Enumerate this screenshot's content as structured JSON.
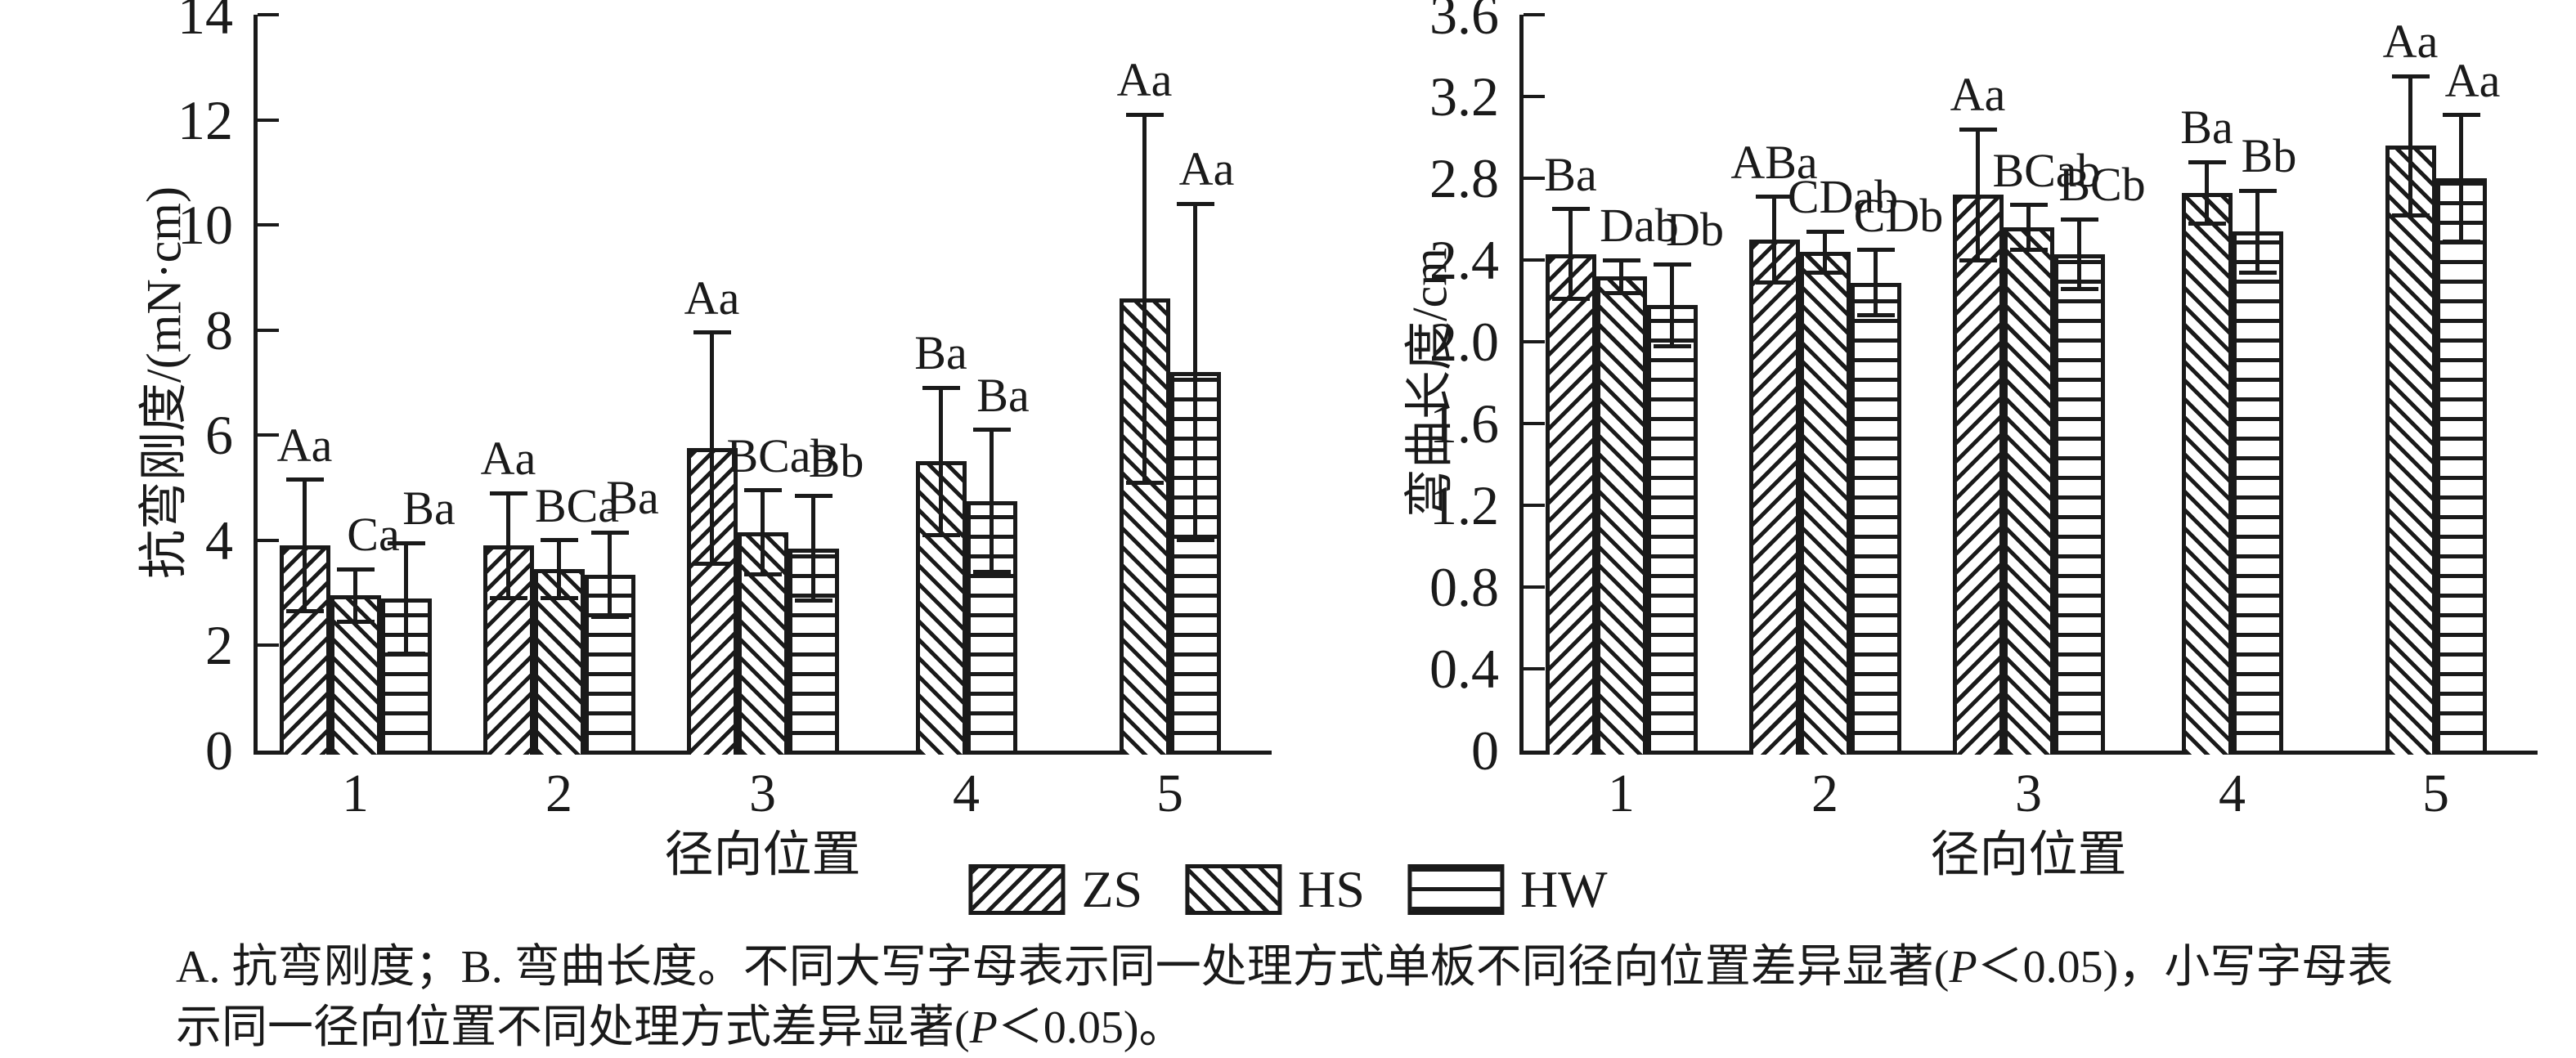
{
  "colors": {
    "foreground": "#1a1a1a",
    "background": "#ffffff"
  },
  "chart_data": [
    {
      "panel": "A",
      "type": "bar",
      "title": "",
      "ylabel": "抗弯刚度/(mN·cm)",
      "xlabel": "径向位置",
      "ylim": [
        0,
        14
      ],
      "grid": false,
      "yticks": [
        {
          "v": 0,
          "label": "0"
        },
        {
          "v": 2,
          "label": "2"
        },
        {
          "v": 4,
          "label": "4"
        },
        {
          "v": 6,
          "label": "6"
        },
        {
          "v": 8,
          "label": "8"
        },
        {
          "v": 10,
          "label": "10"
        },
        {
          "v": 12,
          "label": "12"
        },
        {
          "v": 14,
          "label": "14"
        }
      ],
      "categories": [
        "1",
        "2",
        "3",
        "4",
        "5"
      ],
      "series": [
        {
          "name": "ZS",
          "pattern": "diag-forward",
          "values": [
            3.9,
            3.9,
            5.75,
            null,
            null
          ],
          "errors": [
            1.25,
            1.0,
            2.2,
            null,
            null
          ],
          "point_labels": [
            "Aa",
            "Aa",
            "Aa",
            null,
            null
          ]
        },
        {
          "name": "HS",
          "pattern": "diag-back",
          "values": [
            2.95,
            3.45,
            4.15,
            5.5,
            8.6
          ],
          "errors": [
            0.5,
            0.55,
            0.8,
            1.4,
            3.5
          ],
          "point_labels": [
            "Ca",
            "BCa",
            "BCab",
            "Ba",
            "Aa"
          ]
        },
        {
          "name": "HW",
          "pattern": "horizontal",
          "values": [
            2.9,
            3.35,
            3.85,
            4.75,
            7.2
          ],
          "errors": [
            1.05,
            0.8,
            1.0,
            1.35,
            3.2
          ],
          "point_labels": [
            "Ba",
            "Ba",
            "Bb",
            "Ba",
            "Aa"
          ]
        }
      ]
    },
    {
      "panel": "B",
      "type": "bar",
      "title": "",
      "ylabel": "弯曲长度/cm",
      "xlabel": "径向位置",
      "ylim": [
        0,
        3.6
      ],
      "grid": false,
      "yticks": [
        {
          "v": 0,
          "label": "0"
        },
        {
          "v": 0.4,
          "label": "0.4"
        },
        {
          "v": 0.8,
          "label": "0.8"
        },
        {
          "v": 1.2,
          "label": "1.2"
        },
        {
          "v": 1.6,
          "label": "1.6"
        },
        {
          "v": 2.0,
          "label": "2.0"
        },
        {
          "v": 2.4,
          "label": "2.4"
        },
        {
          "v": 2.8,
          "label": "2.8"
        },
        {
          "v": 3.2,
          "label": "3.2"
        },
        {
          "v": 3.6,
          "label": "3.6"
        }
      ],
      "categories": [
        "1",
        "2",
        "3",
        "4",
        "5"
      ],
      "series": [
        {
          "name": "ZS",
          "pattern": "diag-forward",
          "values": [
            2.43,
            2.5,
            2.72,
            null,
            null
          ],
          "errors": [
            0.22,
            0.21,
            0.32,
            null,
            null
          ],
          "point_labels": [
            "Ba",
            "ABa",
            "Aa",
            null,
            null
          ]
        },
        {
          "name": "HS",
          "pattern": "diag-back",
          "values": [
            2.32,
            2.44,
            2.56,
            2.73,
            2.96
          ],
          "errors": [
            0.08,
            0.1,
            0.11,
            0.15,
            0.34
          ],
          "point_labels": [
            "Dab",
            "CDab",
            "BCab",
            "Ba",
            "Aa"
          ]
        },
        {
          "name": "HW",
          "pattern": "horizontal",
          "values": [
            2.18,
            2.29,
            2.43,
            2.54,
            2.8
          ],
          "errors": [
            0.2,
            0.16,
            0.17,
            0.2,
            0.31
          ],
          "point_labels": [
            "Db",
            "CDb",
            "BCb",
            "Bb",
            "Aa"
          ]
        }
      ]
    }
  ],
  "legend": {
    "position": "bottom-center",
    "items": [
      {
        "label": "ZS",
        "pattern": "diag-forward"
      },
      {
        "label": "HS",
        "pattern": "diag-back"
      },
      {
        "label": "HW",
        "pattern": "horizontal"
      }
    ]
  },
  "caption": {
    "lines": [
      [
        {
          "text": "A. 抗弯刚度；B. 弯曲长度。不同大写字母表示同一处理方式单板不同径向位置差异显著(",
          "italic": false
        },
        {
          "text": "P",
          "italic": true
        },
        {
          "text": "＜0.05)，小写字母表",
          "italic": false
        }
      ],
      [
        {
          "text": "示同一径向位置不同处理方式差异显著(",
          "italic": false
        },
        {
          "text": "P",
          "italic": true
        },
        {
          "text": "＜0.05)。",
          "italic": false
        }
      ]
    ]
  }
}
